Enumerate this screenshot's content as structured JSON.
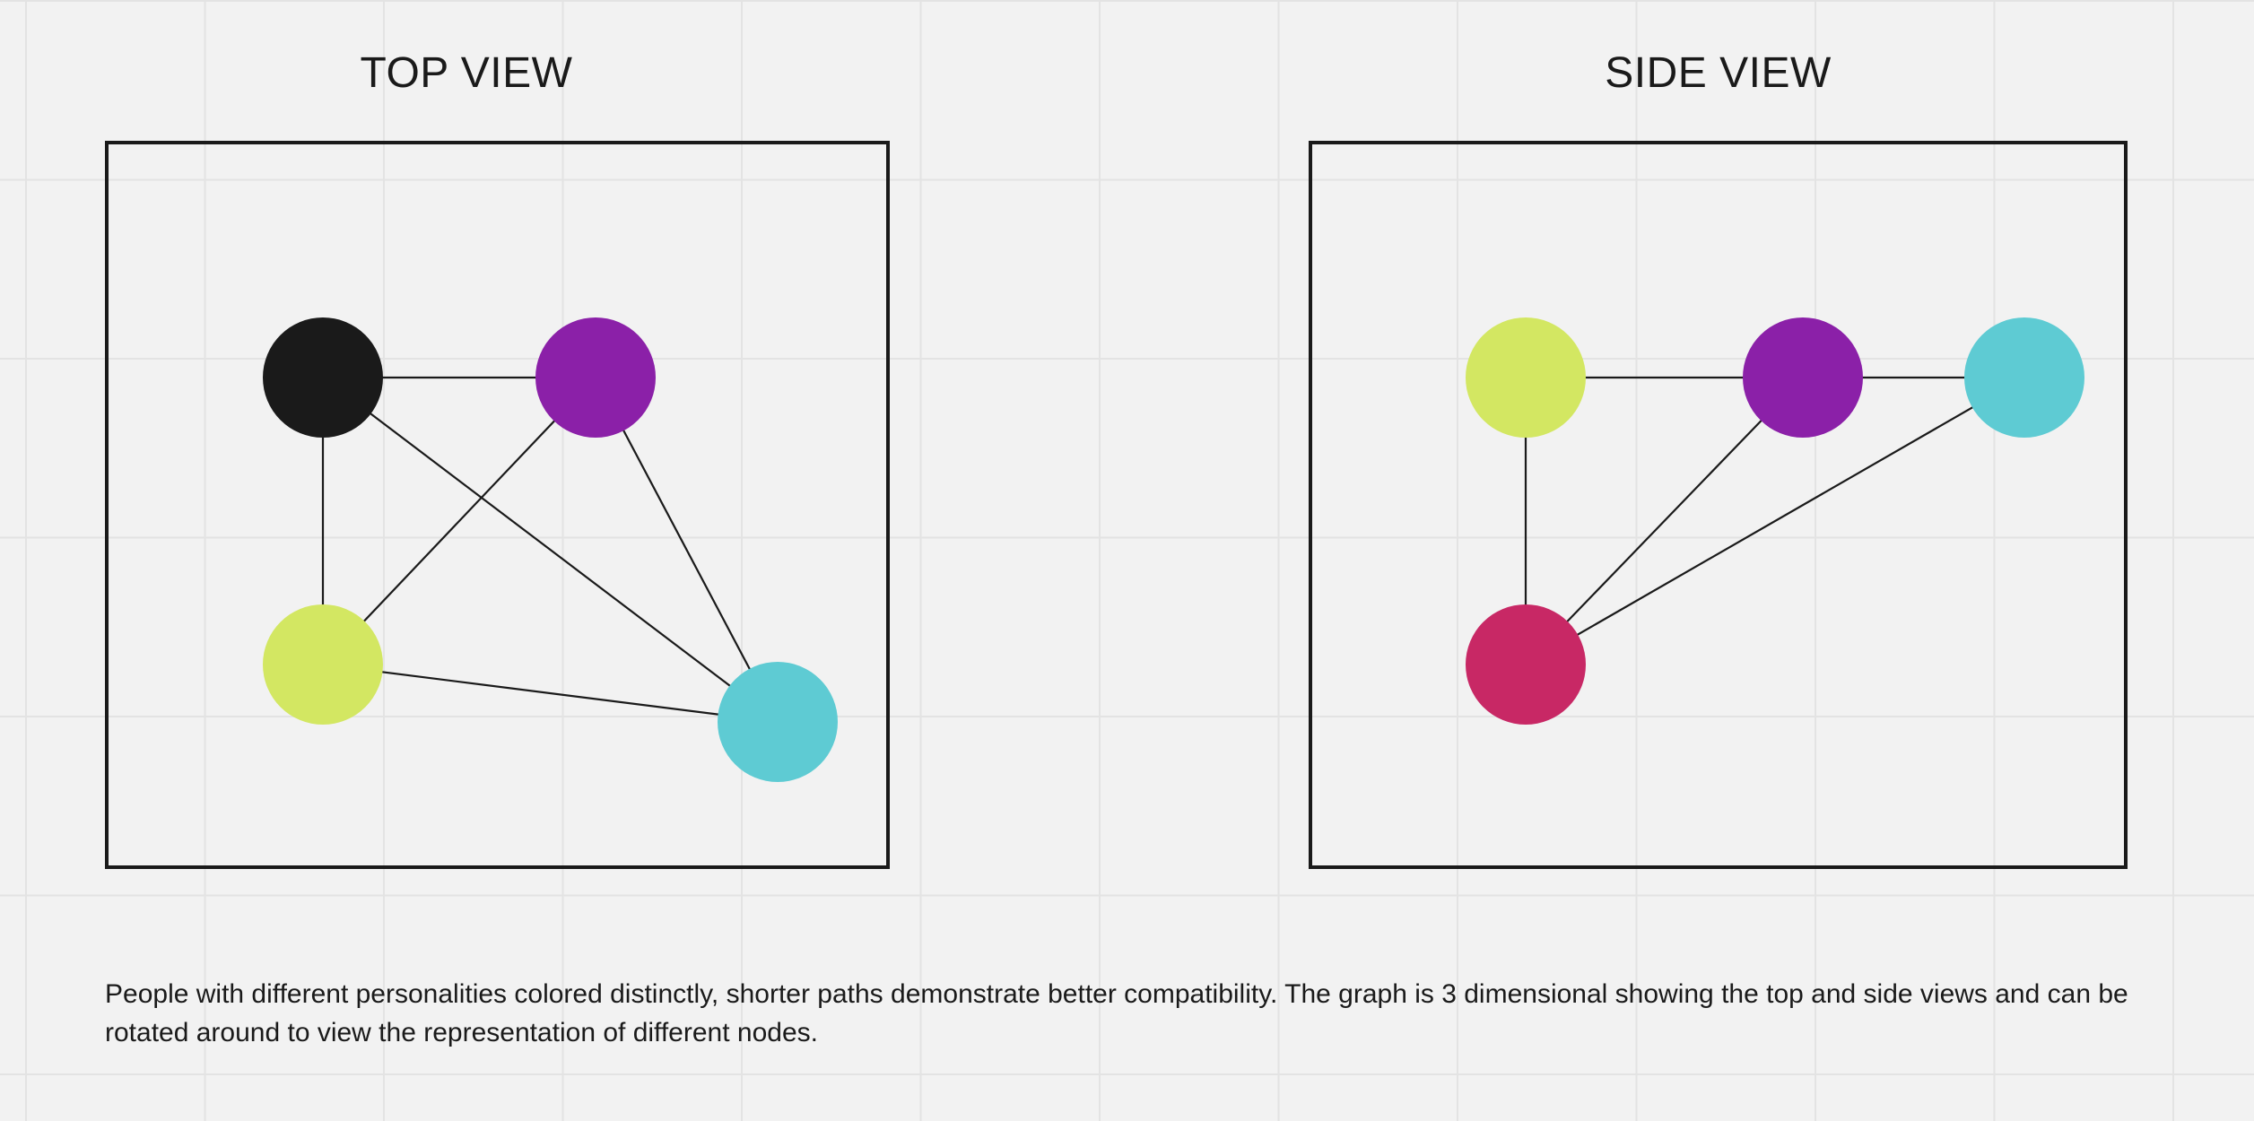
{
  "views": {
    "top": {
      "title": "TOP VIEW",
      "nodes": [
        {
          "id": "black",
          "color": "#1a1a1a"
        },
        {
          "id": "purple",
          "color": "#8b20a8"
        },
        {
          "id": "lime",
          "color": "#d3e762"
        },
        {
          "id": "cyan",
          "color": "#5ecbd3"
        }
      ],
      "edges": [
        [
          "black",
          "purple"
        ],
        [
          "black",
          "lime"
        ],
        [
          "black",
          "cyan"
        ],
        [
          "purple",
          "lime"
        ],
        [
          "purple",
          "cyan"
        ],
        [
          "lime",
          "cyan"
        ]
      ]
    },
    "side": {
      "title": "SIDE VIEW",
      "nodes": [
        {
          "id": "lime",
          "color": "#d3e762"
        },
        {
          "id": "purple",
          "color": "#8b20a8"
        },
        {
          "id": "cyan",
          "color": "#5ecbd3"
        },
        {
          "id": "crimson",
          "color": "#c82865"
        }
      ],
      "edges": [
        [
          "lime",
          "purple"
        ],
        [
          "purple",
          "cyan"
        ],
        [
          "lime",
          "crimson"
        ],
        [
          "purple",
          "crimson"
        ],
        [
          "cyan",
          "crimson"
        ]
      ]
    }
  },
  "caption": "People with different personalities colored distinctly, shorter paths demonstrate better compatibility. The graph is 3 dimensional showing the top and side views and can be rotated around to view the representation of different nodes."
}
